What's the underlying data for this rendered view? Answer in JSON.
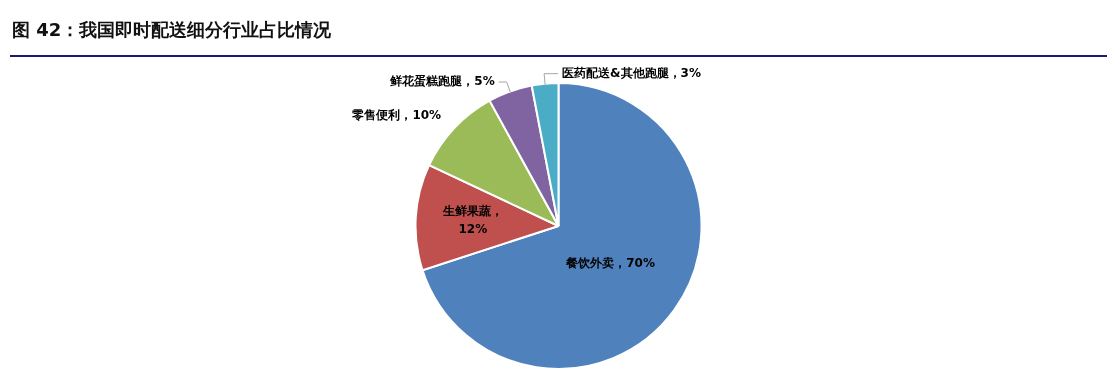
{
  "chart_data": {
    "type": "pie",
    "title": "图 42：我国即时配送细分行业占比情况",
    "categories": [
      "餐饮外卖",
      "生鲜果蔬",
      "零售便利",
      "鲜花蛋糕跑腿",
      "医药配送&其他跑腿"
    ],
    "values": [
      70,
      12,
      10,
      5,
      3
    ],
    "colors": [
      "#4f81bd",
      "#c0504d",
      "#9bbb59",
      "#8064a2",
      "#4bacc6"
    ],
    "value_labels": [
      "，70%",
      "，12%",
      "，10%",
      "，5%",
      "，3%"
    ],
    "legend": false
  }
}
